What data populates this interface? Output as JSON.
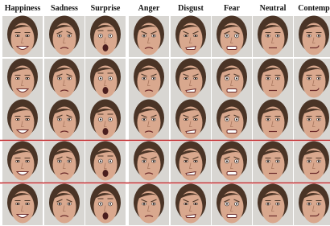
{
  "header": {
    "labels": [
      "Happiness",
      "Sadness",
      "Surprise",
      "Anger",
      "Disgust",
      "Fear",
      "Neutral",
      "Contemp"
    ]
  }
}
